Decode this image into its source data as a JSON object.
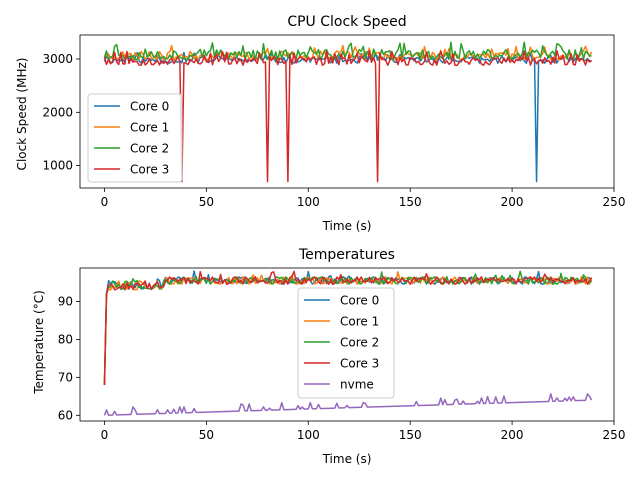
{
  "chart_data": [
    {
      "type": "line",
      "title": "CPU Clock Speed",
      "xlabel": "Time (s)",
      "ylabel": "Clock Speed (MHz)",
      "xlim": [
        -12,
        250
      ],
      "ylim": [
        580,
        3450
      ],
      "xticks": [
        0,
        50,
        100,
        150,
        200,
        250
      ],
      "yticks": [
        1000,
        2000,
        3000
      ],
      "legend_position": "center-left",
      "series": [
        {
          "name": "Core 0",
          "color": "#1f77b4",
          "base": 2980,
          "amp": 60,
          "seed": 11,
          "spikes": [
            {
              "x": 212,
              "y": 700
            }
          ]
        },
        {
          "name": "Core 1",
          "color": "#ff7f0e",
          "base": 3060,
          "amp": 80,
          "seed": 23,
          "spikes": []
        },
        {
          "name": "Core 2",
          "color": "#2ca02c",
          "base": 3080,
          "amp": 100,
          "seed": 37,
          "spikes": []
        },
        {
          "name": "Core 3",
          "color": "#d62728",
          "base": 2960,
          "amp": 80,
          "seed": 53,
          "spikes": [
            {
              "x": 38,
              "y": 700
            },
            {
              "x": 80,
              "y": 700
            },
            {
              "x": 90,
              "y": 700
            },
            {
              "x": 134,
              "y": 700
            }
          ]
        }
      ]
    },
    {
      "type": "line",
      "title": "Temperatures",
      "xlabel": "Time (s)",
      "ylabel": "Temperature (°C)",
      "xlim": [
        -12,
        250
      ],
      "ylim": [
        58.5,
        98.8
      ],
      "xticks": [
        0,
        50,
        100,
        150,
        200,
        250
      ],
      "yticks": [
        60,
        70,
        80,
        90
      ],
      "legend_position": "center",
      "series": [
        {
          "name": "Core 0",
          "color": "#1f77b4",
          "kind": "cpu",
          "seed": 101
        },
        {
          "name": "Core 1",
          "color": "#ff7f0e",
          "kind": "cpu",
          "seed": 202
        },
        {
          "name": "Core 2",
          "color": "#2ca02c",
          "kind": "cpu",
          "seed": 303
        },
        {
          "name": "Core 3",
          "color": "#d62728",
          "kind": "cpu",
          "seed": 404
        },
        {
          "name": "nvme",
          "color": "#9467bd",
          "kind": "nvme",
          "seed": 505
        }
      ]
    }
  ]
}
